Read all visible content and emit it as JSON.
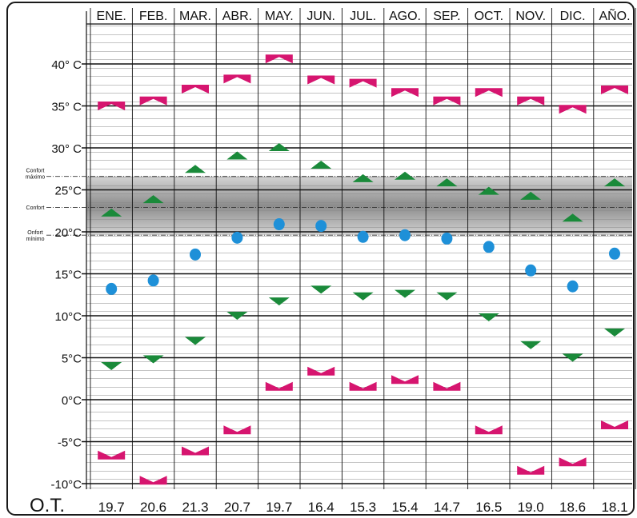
{
  "chart_data": {
    "type": "scatter",
    "title": "",
    "months": [
      "ENE.",
      "FEB.",
      "MAR.",
      "ABR.",
      "MAY.",
      "JUN.",
      "JUL.",
      "AGO.",
      "SEP.",
      "OCT.",
      "NOV.",
      "DIC.",
      "AÑO."
    ],
    "y_ticks": [
      {
        "value": 40,
        "label": "40° C"
      },
      {
        "value": 35,
        "label": "35° C"
      },
      {
        "value": 30,
        "label": "30° C"
      },
      {
        "value": 25,
        "label": "25°C"
      },
      {
        "value": 20,
        "label": "20°C"
      },
      {
        "value": 15,
        "label": "15°C"
      },
      {
        "value": 10,
        "label": "10°C"
      },
      {
        "value": 5,
        "label": "5°C"
      },
      {
        "value": 0,
        "label": "0°C"
      },
      {
        "value": -5,
        "label": "-5°C"
      },
      {
        "value": -10,
        "label": "-10°C"
      }
    ],
    "ylim": [
      -10,
      45
    ],
    "grid": true,
    "comfort_band": {
      "max": 26.6,
      "comfort": 22.9,
      "min": 19.6,
      "label_max": [
        "Confort",
        "máximo"
      ],
      "label_comfort": "Confort",
      "label_min": [
        "Onfort",
        "mínimo"
      ]
    },
    "series": [
      {
        "key": "max_absolute",
        "marker": "bowtie-up",
        "color": "#d6156f",
        "values": [
          35.0,
          35.6,
          37.0,
          38.2,
          40.6,
          38.1,
          37.7,
          36.6,
          35.6,
          36.6,
          35.6,
          34.6,
          36.9
        ]
      },
      {
        "key": "mean_max",
        "marker": "triangle-up",
        "color": "#1a8a3a",
        "values": [
          22.2,
          23.8,
          27.4,
          29.0,
          30.0,
          27.9,
          26.3,
          26.6,
          25.8,
          24.8,
          24.2,
          21.6,
          25.8
        ]
      },
      {
        "key": "mean",
        "marker": "circle",
        "color": "#1e90d8",
        "values": [
          13.2,
          14.2,
          17.3,
          19.3,
          20.9,
          20.7,
          19.4,
          19.6,
          19.2,
          18.2,
          15.4,
          13.5,
          17.4
        ]
      },
      {
        "key": "mean_min",
        "marker": "triangle-down",
        "color": "#1a8a3a",
        "values": [
          4.1,
          4.9,
          7.1,
          10.1,
          11.8,
          13.2,
          12.4,
          12.7,
          12.4,
          9.9,
          6.6,
          5.1,
          8.1
        ]
      },
      {
        "key": "min_absolute",
        "marker": "bowtie-down",
        "color": "#d6156f",
        "values": [
          -6.6,
          -9.6,
          -6.1,
          -3.6,
          1.6,
          3.4,
          1.6,
          2.4,
          1.6,
          -3.6,
          -8.4,
          -7.4,
          -3.0
        ]
      }
    ],
    "ot_label": "O.T.",
    "ot_values": [
      "19.7",
      "20.6",
      "21.3",
      "20.7",
      "19.7",
      "16.4",
      "15.3",
      "15.4",
      "14.7",
      "16.5",
      "19.0",
      "18.6",
      "18.1"
    ]
  }
}
